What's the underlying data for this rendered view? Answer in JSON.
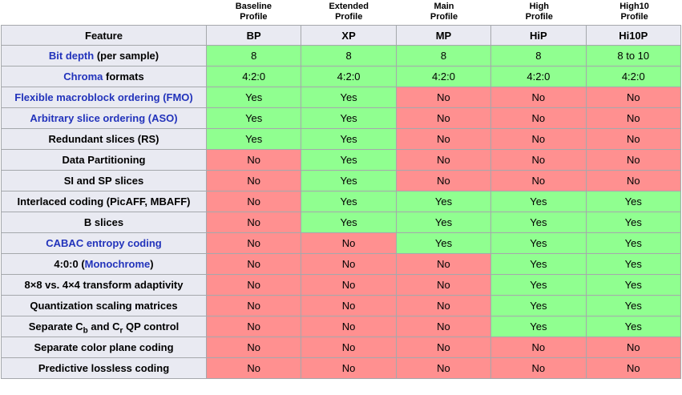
{
  "header_labels": [
    "Baseline\nProfile",
    "Extended\nProfile",
    "Main\nProfile",
    "High\nProfile",
    "High10\nProfile"
  ],
  "table": {
    "feature_header": "Feature",
    "column_headers": [
      "BP",
      "XP",
      "MP",
      "HiP",
      "Hi10P"
    ],
    "rows": [
      {
        "feature": [
          {
            "t": "Bit depth",
            "link": true
          },
          {
            "t": " (per sample)"
          }
        ],
        "cells": [
          {
            "text": "8",
            "state": "yes"
          },
          {
            "text": "8",
            "state": "yes"
          },
          {
            "text": "8",
            "state": "yes"
          },
          {
            "text": "8",
            "state": "yes"
          },
          {
            "text": "8 to 10",
            "state": "yes"
          }
        ]
      },
      {
        "feature": [
          {
            "t": "Chroma",
            "link": true
          },
          {
            "t": " formats"
          }
        ],
        "cells": [
          {
            "text": "4:2:0",
            "state": "yes"
          },
          {
            "text": "4:2:0",
            "state": "yes"
          },
          {
            "text": "4:2:0",
            "state": "yes"
          },
          {
            "text": "4:2:0",
            "state": "yes"
          },
          {
            "text": "4:2:0",
            "state": "yes"
          }
        ]
      },
      {
        "feature": [
          {
            "t": "Flexible macroblock ordering (FMO)",
            "link": true
          }
        ],
        "cells": [
          {
            "text": "Yes",
            "state": "yes"
          },
          {
            "text": "Yes",
            "state": "yes"
          },
          {
            "text": "No",
            "state": "no"
          },
          {
            "text": "No",
            "state": "no"
          },
          {
            "text": "No",
            "state": "no"
          }
        ]
      },
      {
        "feature": [
          {
            "t": "Arbitrary slice ordering (ASO)",
            "link": true
          }
        ],
        "cells": [
          {
            "text": "Yes",
            "state": "yes"
          },
          {
            "text": "Yes",
            "state": "yes"
          },
          {
            "text": "No",
            "state": "no"
          },
          {
            "text": "No",
            "state": "no"
          },
          {
            "text": "No",
            "state": "no"
          }
        ]
      },
      {
        "feature": [
          {
            "t": "Redundant slices (RS)"
          }
        ],
        "cells": [
          {
            "text": "Yes",
            "state": "yes"
          },
          {
            "text": "Yes",
            "state": "yes"
          },
          {
            "text": "No",
            "state": "no"
          },
          {
            "text": "No",
            "state": "no"
          },
          {
            "text": "No",
            "state": "no"
          }
        ]
      },
      {
        "feature": [
          {
            "t": "Data Partitioning"
          }
        ],
        "cells": [
          {
            "text": "No",
            "state": "no"
          },
          {
            "text": "Yes",
            "state": "yes"
          },
          {
            "text": "No",
            "state": "no"
          },
          {
            "text": "No",
            "state": "no"
          },
          {
            "text": "No",
            "state": "no"
          }
        ]
      },
      {
        "feature": [
          {
            "t": "SI and SP slices"
          }
        ],
        "cells": [
          {
            "text": "No",
            "state": "no"
          },
          {
            "text": "Yes",
            "state": "yes"
          },
          {
            "text": "No",
            "state": "no"
          },
          {
            "text": "No",
            "state": "no"
          },
          {
            "text": "No",
            "state": "no"
          }
        ]
      },
      {
        "feature": [
          {
            "t": "Interlaced coding (PicAFF, MBAFF)"
          }
        ],
        "cells": [
          {
            "text": "No",
            "state": "no"
          },
          {
            "text": "Yes",
            "state": "yes"
          },
          {
            "text": "Yes",
            "state": "yes"
          },
          {
            "text": "Yes",
            "state": "yes"
          },
          {
            "text": "Yes",
            "state": "yes"
          }
        ]
      },
      {
        "feature": [
          {
            "t": "B slices"
          }
        ],
        "cells": [
          {
            "text": "No",
            "state": "no"
          },
          {
            "text": "Yes",
            "state": "yes"
          },
          {
            "text": "Yes",
            "state": "yes"
          },
          {
            "text": "Yes",
            "state": "yes"
          },
          {
            "text": "Yes",
            "state": "yes"
          }
        ]
      },
      {
        "feature": [
          {
            "t": "CABAC entropy coding",
            "link": true
          }
        ],
        "cells": [
          {
            "text": "No",
            "state": "no"
          },
          {
            "text": "No",
            "state": "no"
          },
          {
            "text": "Yes",
            "state": "yes"
          },
          {
            "text": "Yes",
            "state": "yes"
          },
          {
            "text": "Yes",
            "state": "yes"
          }
        ]
      },
      {
        "feature": [
          {
            "t": "4:0:0 ("
          },
          {
            "t": "Monochrome",
            "link": true
          },
          {
            "t": ")"
          }
        ],
        "cells": [
          {
            "text": "No",
            "state": "no"
          },
          {
            "text": "No",
            "state": "no"
          },
          {
            "text": "No",
            "state": "no"
          },
          {
            "text": "Yes",
            "state": "yes"
          },
          {
            "text": "Yes",
            "state": "yes"
          }
        ]
      },
      {
        "feature": [
          {
            "t": "8×8 vs. 4×4 transform adaptivity"
          }
        ],
        "cells": [
          {
            "text": "No",
            "state": "no"
          },
          {
            "text": "No",
            "state": "no"
          },
          {
            "text": "No",
            "state": "no"
          },
          {
            "text": "Yes",
            "state": "yes"
          },
          {
            "text": "Yes",
            "state": "yes"
          }
        ]
      },
      {
        "feature": [
          {
            "t": "Quantization scaling matrices"
          }
        ],
        "cells": [
          {
            "text": "No",
            "state": "no"
          },
          {
            "text": "No",
            "state": "no"
          },
          {
            "text": "No",
            "state": "no"
          },
          {
            "text": "Yes",
            "state": "yes"
          },
          {
            "text": "Yes",
            "state": "yes"
          }
        ]
      },
      {
        "feature": [
          {
            "t": "Separate C"
          },
          {
            "t": "b",
            "sub": true
          },
          {
            "t": " and C"
          },
          {
            "t": "r",
            "sub": true
          },
          {
            "t": " QP control"
          }
        ],
        "cells": [
          {
            "text": "No",
            "state": "no"
          },
          {
            "text": "No",
            "state": "no"
          },
          {
            "text": "No",
            "state": "no"
          },
          {
            "text": "Yes",
            "state": "yes"
          },
          {
            "text": "Yes",
            "state": "yes"
          }
        ]
      },
      {
        "feature": [
          {
            "t": "Separate color plane coding"
          }
        ],
        "cells": [
          {
            "text": "No",
            "state": "no"
          },
          {
            "text": "No",
            "state": "no"
          },
          {
            "text": "No",
            "state": "no"
          },
          {
            "text": "No",
            "state": "no"
          },
          {
            "text": "No",
            "state": "no"
          }
        ]
      },
      {
        "feature": [
          {
            "t": "Predictive lossless coding"
          }
        ],
        "cells": [
          {
            "text": "No",
            "state": "no"
          },
          {
            "text": "No",
            "state": "no"
          },
          {
            "text": "No",
            "state": "no"
          },
          {
            "text": "No",
            "state": "no"
          },
          {
            "text": "No",
            "state": "no"
          }
        ]
      }
    ]
  },
  "colors": {
    "yes_bg": "#90ff90",
    "no_bg": "#ff9090",
    "header_bg": "#e9eaf2",
    "border": "#a5a8ac",
    "link": "#2233bb"
  }
}
